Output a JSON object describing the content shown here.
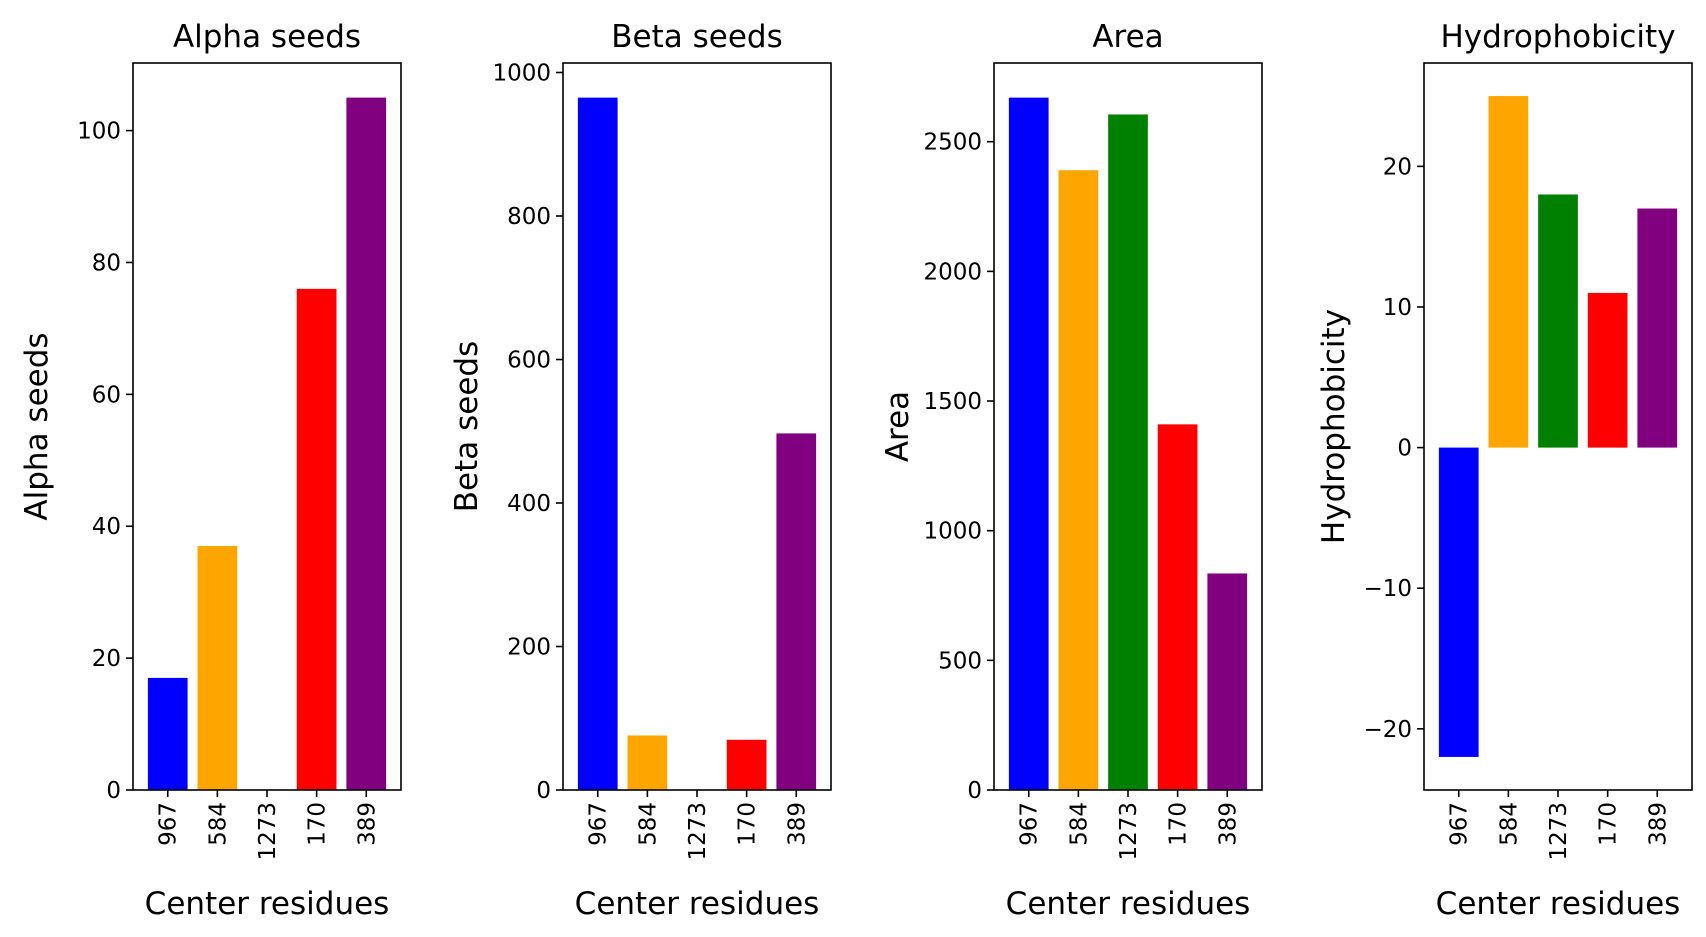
{
  "figure": {
    "panels": [
      "Alpha seeds",
      "Beta seeds",
      "Area",
      "Hydrophobicity"
    ]
  },
  "chart_data": [
    {
      "type": "bar",
      "title": "Alpha seeds",
      "xlabel": "Center residues",
      "ylabel": "Alpha seeds",
      "categories": [
        "967",
        "584",
        "1273",
        "170",
        "389"
      ],
      "values": [
        17,
        37,
        0,
        76,
        105
      ],
      "colors": [
        "#0000ff",
        "#ffa500",
        "#008000",
        "#ff0000",
        "#800080"
      ],
      "ylim": [
        0,
        110.25
      ],
      "yticks": [
        0,
        20,
        40,
        60,
        80,
        100
      ],
      "ytick_labels": [
        "0",
        "20",
        "40",
        "60",
        "80",
        "100"
      ],
      "grid": false,
      "legend": "none"
    },
    {
      "type": "bar",
      "title": "Beta seeds",
      "xlabel": "Center residues",
      "ylabel": "Beta seeds",
      "categories": [
        "967",
        "584",
        "1273",
        "170",
        "389"
      ],
      "values": [
        965,
        76,
        0,
        70,
        497
      ],
      "colors": [
        "#0000ff",
        "#ffa500",
        "#008000",
        "#ff0000",
        "#800080"
      ],
      "ylim": [
        0,
        1013.25
      ],
      "yticks": [
        0,
        200,
        400,
        600,
        800,
        1000
      ],
      "ytick_labels": [
        "0",
        "200",
        "400",
        "600",
        "800",
        "1000"
      ],
      "grid": false,
      "legend": "none"
    },
    {
      "type": "bar",
      "title": "Area",
      "xlabel": "Center residues",
      "ylabel": "Area",
      "categories": [
        "967",
        "584",
        "1273",
        "170",
        "389"
      ],
      "values": [
        2670,
        2390,
        2605,
        1410,
        835
      ],
      "colors": [
        "#0000ff",
        "#ffa500",
        "#008000",
        "#ff0000",
        "#800080"
      ],
      "ylim": [
        0,
        2803.5
      ],
      "yticks": [
        0,
        500,
        1000,
        1500,
        2000,
        2500
      ],
      "ytick_labels": [
        "0",
        "500",
        "1000",
        "1500",
        "2000",
        "2500"
      ],
      "grid": false,
      "legend": "none"
    },
    {
      "type": "bar",
      "title": "Hydrophobicity",
      "xlabel": "Center residues",
      "ylabel": "Hydrophobicity",
      "categories": [
        "967",
        "584",
        "1273",
        "170",
        "389"
      ],
      "values": [
        -22,
        25,
        18,
        11,
        17
      ],
      "colors": [
        "#0000ff",
        "#ffa500",
        "#008000",
        "#ff0000",
        "#800080"
      ],
      "ylim": [
        -24.35,
        27.35
      ],
      "yticks": [
        -20,
        -10,
        0,
        10,
        20
      ],
      "ytick_labels": [
        "−20",
        "−10",
        "0",
        "10",
        "20"
      ],
      "grid": false,
      "legend": "none"
    }
  ]
}
